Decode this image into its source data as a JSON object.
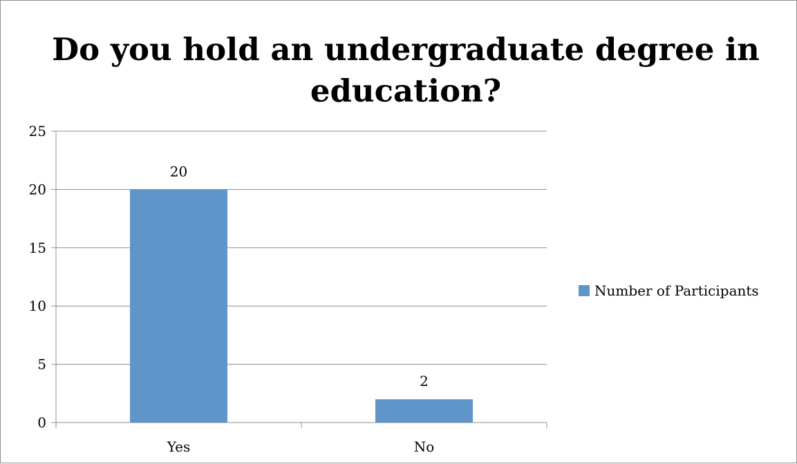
{
  "chart_data": {
    "type": "bar",
    "title": [
      "Do you hold an undergraduate degree in",
      "education?"
    ],
    "categories": [
      "Yes",
      "No"
    ],
    "series": [
      {
        "name": "Number of Participants",
        "values": [
          20,
          2
        ],
        "color": "#6095c9"
      }
    ],
    "ylim": [
      0,
      25
    ],
    "yticks": [
      0,
      5,
      10,
      15,
      20,
      25
    ],
    "grid": true,
    "legend_position": "right",
    "data_labels": true
  }
}
